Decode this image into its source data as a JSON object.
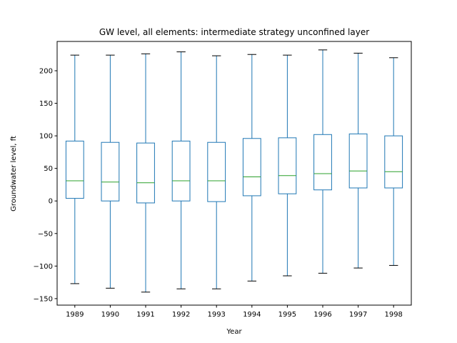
{
  "chart_data": {
    "type": "box",
    "title": "GW level, all elements: intermediate strategy unconfined layer",
    "xlabel": "Year",
    "ylabel": "Groundwater level, ft",
    "ylim": [
      -160,
      245
    ],
    "yticks": [
      -150,
      -100,
      -50,
      0,
      50,
      100,
      150,
      200
    ],
    "grid": false,
    "categories": [
      "1989",
      "1990",
      "1991",
      "1992",
      "1993",
      "1994",
      "1995",
      "1996",
      "1997",
      "1998"
    ],
    "boxes": [
      {
        "whisker_low": -127,
        "q1": 4,
        "median": 31,
        "q3": 92,
        "whisker_high": 224
      },
      {
        "whisker_low": -134,
        "q1": 0,
        "median": 29,
        "q3": 90,
        "whisker_high": 224
      },
      {
        "whisker_low": -140,
        "q1": -3,
        "median": 28,
        "q3": 89,
        "whisker_high": 226
      },
      {
        "whisker_low": -135,
        "q1": 0,
        "median": 31,
        "q3": 92,
        "whisker_high": 229
      },
      {
        "whisker_low": -135,
        "q1": -1,
        "median": 31,
        "q3": 90,
        "whisker_high": 223
      },
      {
        "whisker_low": -123,
        "q1": 8,
        "median": 37,
        "q3": 96,
        "whisker_high": 225
      },
      {
        "whisker_low": -115,
        "q1": 11,
        "median": 39,
        "q3": 97,
        "whisker_high": 224
      },
      {
        "whisker_low": -111,
        "q1": 17,
        "median": 42,
        "q3": 102,
        "whisker_high": 232
      },
      {
        "whisker_low": -103,
        "q1": 20,
        "median": 46,
        "q3": 103,
        "whisker_high": 227
      },
      {
        "whisker_low": -99,
        "q1": 20,
        "median": 45,
        "q3": 100,
        "whisker_high": 220
      }
    ],
    "colors": {
      "box": "#1f77b4",
      "median": "#2ca02c",
      "cap": "#000000",
      "axes": "#000000"
    }
  }
}
